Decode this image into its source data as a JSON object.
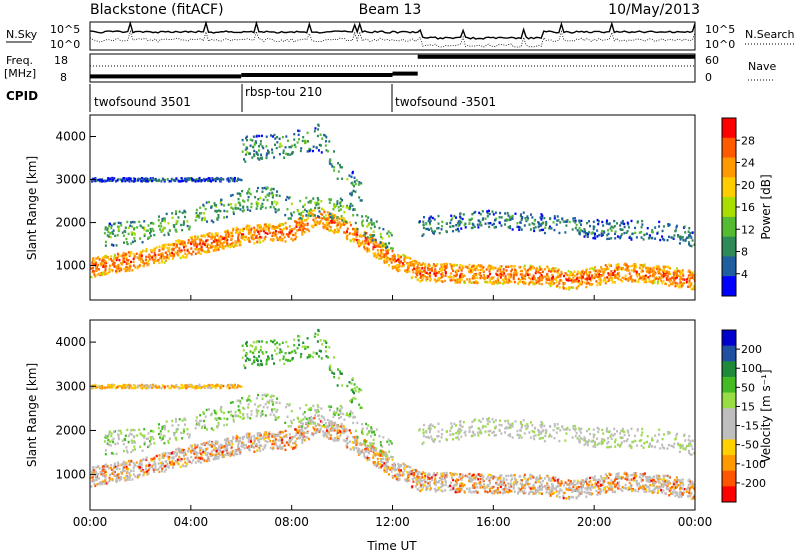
{
  "header": {
    "radar": "Blackstone (fitACF)",
    "beam": "Beam 13",
    "date": "10/May/2013"
  },
  "noise_panel": {
    "left_label": "N.Sky",
    "right_label": "N.Search",
    "top_tick": "10^5",
    "bottom_tick": "10^0",
    "right_top_tick": "10^5",
    "right_bottom_tick": "10^0"
  },
  "freq_panel": {
    "left_label_line1": "Freq.",
    "left_label_line2": "[MHz]",
    "ticks": [
      "18",
      "8"
    ],
    "right_label": "Nave",
    "right_ticks": [
      "60",
      "0"
    ]
  },
  "cpid_panel": {
    "label": "CPID",
    "segments": [
      {
        "name": "twofsound 3501",
        "start": 0.0,
        "end": 6.0
      },
      {
        "name": "rbsp-tou 210",
        "start": 6.0,
        "end": 12.0
      },
      {
        "name": "twofsound -3501",
        "start": 12.0,
        "end": 24.0
      }
    ]
  },
  "power_colorbar": {
    "label": "Power [dB]",
    "ticks": [
      "28",
      "24",
      "20",
      "16",
      "12",
      "8",
      "4"
    ],
    "colors": [
      "#ff0000",
      "#ff5a00",
      "#ff9900",
      "#ffcc00",
      "#aadd00",
      "#55bb33",
      "#2e8b57",
      "#1f5f9f",
      "#0000ff"
    ]
  },
  "velocity_colorbar": {
    "label": "Velocity [m s⁻¹]",
    "ticks": [
      "200",
      "100",
      "50",
      "15",
      "-15",
      "-50",
      "-100",
      "-200"
    ],
    "colors": [
      "#0000cc",
      "#2050a0",
      "#1e8a3a",
      "#44bb22",
      "#99dd44",
      "#bebebe",
      "#bebebe",
      "#ffd000",
      "#ff9900",
      "#ff5500",
      "#ff0000"
    ]
  },
  "x_axis": {
    "label": "Time UT",
    "ticks": [
      "00:00",
      "04:00",
      "08:00",
      "12:00",
      "16:00",
      "20:00",
      "00:00"
    ]
  },
  "y_axis": {
    "label": "Slant Range [km]",
    "ticks": [
      "4000",
      "3000",
      "2000",
      "1000"
    ]
  },
  "chart_data": {
    "type": "heatmap",
    "x_unit": "hours UT",
    "xlim": [
      0,
      24
    ],
    "ylim": [
      200,
      4500
    ],
    "y_ticks": [
      1000,
      2000,
      3000,
      4000
    ],
    "freq_mhz": {
      "ylim": [
        8,
        18
      ],
      "segments": [
        [
          0,
          6,
          10
        ],
        [
          6,
          12,
          10.5
        ],
        [
          12,
          13,
          11
        ],
        [
          13,
          24,
          17
        ]
      ]
    },
    "scatter_bands": [
      {
        "name": "main",
        "points": [
          [
            0,
            950
          ],
          [
            2,
            1150
          ],
          [
            4,
            1450
          ],
          [
            6,
            1700
          ],
          [
            8,
            1800
          ],
          [
            9,
            2150
          ],
          [
            10,
            1900
          ],
          [
            12,
            1150
          ],
          [
            13,
            850
          ],
          [
            16,
            800
          ],
          [
            18,
            780
          ],
          [
            19,
            650
          ],
          [
            21,
            850
          ],
          [
            22.5,
            800
          ],
          [
            24,
            650
          ]
        ],
        "power": 26,
        "velocity": -150,
        "width": 220
      },
      {
        "name": "upper",
        "points": [
          [
            0.5,
            1700
          ],
          [
            2,
            1800
          ],
          [
            4,
            2100
          ],
          [
            6,
            2500
          ],
          [
            7,
            2600
          ],
          [
            8,
            2300
          ],
          [
            9,
            2400
          ],
          [
            10,
            2300
          ],
          [
            11,
            1900
          ],
          [
            12,
            1550
          ]
        ],
        "power": 12,
        "velocity": 30,
        "width": 260
      },
      {
        "name": "far",
        "points": [
          [
            13,
            1900
          ],
          [
            16,
            2100
          ],
          [
            20,
            1850
          ],
          [
            23,
            1800
          ],
          [
            24,
            1600
          ]
        ],
        "power": 8,
        "velocity": 0,
        "width": 220
      },
      {
        "name": "high",
        "points": [
          [
            6,
            3700
          ],
          [
            8,
            3800
          ],
          [
            9,
            4000
          ],
          [
            10,
            3100
          ],
          [
            10.8,
            2700
          ]
        ],
        "power": 10,
        "velocity": 80,
        "width": 300
      },
      {
        "name": "line3000",
        "points": [
          [
            0,
            3000
          ],
          [
            6,
            3000
          ]
        ],
        "power": 6,
        "velocity": -100,
        "width": 40
      }
    ]
  }
}
